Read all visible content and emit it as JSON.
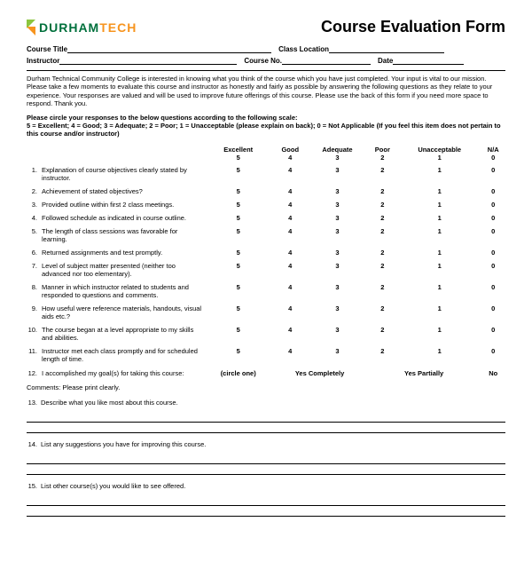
{
  "logo": {
    "text1": "DURHAM",
    "text2": "TECH",
    "color_green": "#00703c",
    "color_orange": "#f7941e",
    "color_lime": "#8cc63f"
  },
  "title": "Course Evaluation Form",
  "fields": {
    "course_title": "Course Title",
    "class_location": "Class Location",
    "instructor": "Instructor",
    "course_no": "Course No.",
    "date": "Date"
  },
  "intro": "Durham Technical Community College is interested in knowing what you think of the course which you have just completed. Your input is vital to our mission.  Please take a few moments to evaluate this course and instructor as honestly and fairly as possible by answering the following questions as they relate to your experience.  Your responses are valued and will be used to improve future offerings of this course. Please use the back of this form if you need more space to respond. Thank you.",
  "scale_instr_1": "Please circle your responses to the below questions according to the following scale:",
  "scale_instr_2": "5 = Excellent; 4 = Good; 3 = Adequate; 2 = Poor; 1 = Unacceptable (please explain on back); 0 = Not Applicable (If you feel this item does not pertain to this course and/or instructor)",
  "rating_header": {
    "col1": {
      "top": "Excellent",
      "bot": "5"
    },
    "col2": {
      "top": "Good",
      "bot": "4"
    },
    "col3": {
      "top": "Adequate",
      "bot": "3"
    },
    "col4": {
      "top": "Poor",
      "bot": "2"
    },
    "col5": {
      "top": "Unacceptable",
      "bot": "1"
    },
    "col6": {
      "top": "N/A",
      "bot": "0"
    }
  },
  "questions": [
    {
      "n": "1.",
      "q": "Explanation of course objectives clearly stated by instructor."
    },
    {
      "n": "2.",
      "q": "Achievement of stated objectives?"
    },
    {
      "n": "3.",
      "q": "Provided outline within first 2 class meetings."
    },
    {
      "n": "4.",
      "q": "Followed schedule as indicated in course outline."
    },
    {
      "n": "5.",
      "q": "The length of class sessions was favorable for learning."
    },
    {
      "n": "6.",
      "q": "Returned assignments and test promptly."
    },
    {
      "n": "7.",
      "q": "Level of subject matter presented (neither too advanced nor too elementary)."
    },
    {
      "n": "8.",
      "q": "Manner in which instructor related to students and responded to questions and comments."
    },
    {
      "n": "9.",
      "q": "How useful were reference materials, handouts, visual aids etc.?"
    },
    {
      "n": "10.",
      "q": "The course began at a level appropriate to my skills and abilities."
    },
    {
      "n": "11.",
      "q": "Instructor met each class promptly and for scheduled length of time."
    }
  ],
  "ratings": [
    "5",
    "4",
    "3",
    "2",
    "1",
    "0"
  ],
  "q12": {
    "n": "12.",
    "q": "I accomplished my goal(s) for taking this course:",
    "circle": "(circle one)",
    "opt1": "Yes Completely",
    "opt2": "Yes Partially",
    "opt3": "No"
  },
  "comments_label": "Comments:  Please print clearly.",
  "open_questions": [
    {
      "n": "13.",
      "q": "Describe what you like most about this course."
    },
    {
      "n": "14.",
      "q": "List any suggestions you have for improving this course."
    },
    {
      "n": "15.",
      "q": "List other course(s) you would like to see offered."
    }
  ]
}
